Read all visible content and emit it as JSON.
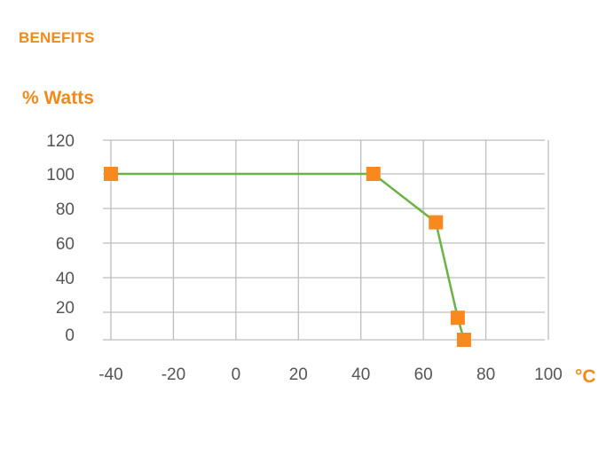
{
  "header": {
    "title": "BENEFITS"
  },
  "colors": {
    "accent": "#f08a1c",
    "line": "#6ab344",
    "marker": "#f7891f",
    "grid": "#bdbdbd"
  },
  "chart_data": {
    "type": "line",
    "title": "",
    "ylabel": "% Watts",
    "xlabel": "°C",
    "x_ticks": [
      -40,
      -20,
      0,
      20,
      40,
      60,
      80,
      100
    ],
    "y_ticks": [
      0,
      20,
      40,
      60,
      80,
      100,
      120
    ],
    "xlim": [
      -40,
      100
    ],
    "ylim": [
      0,
      120
    ],
    "grid": true,
    "series": [
      {
        "x": [
          -40,
          44,
          64,
          71,
          73
        ],
        "y": [
          100,
          100,
          72,
          16,
          0
        ]
      }
    ]
  }
}
